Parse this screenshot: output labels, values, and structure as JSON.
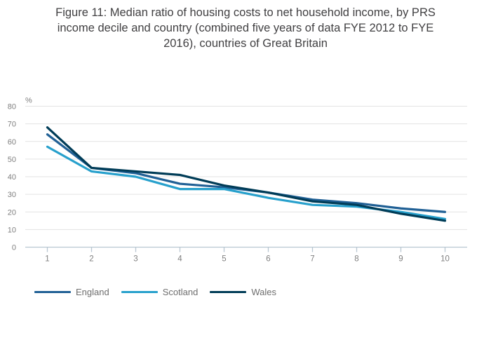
{
  "title_lines": {
    "l1": "Figure 11: Median ratio of housing costs to net household income, by PRS",
    "l2": "income decile and country (combined five years of data FYE 2012 to FYE",
    "l3": "2016), countries of Great Britain"
  },
  "chart_data": {
    "type": "line",
    "title": "Figure 11: Median ratio of housing costs to net household income, by PRS income decile and country (combined five years of data FYE 2012 to FYE 2016), countries of Great Britain",
    "x": [
      "1",
      "2",
      "3",
      "4",
      "5",
      "6",
      "7",
      "8",
      "9",
      "10"
    ],
    "xlabel": "",
    "ylabel": "%",
    "ylim": [
      0,
      80
    ],
    "yticks": [
      0,
      10,
      20,
      30,
      40,
      50,
      60,
      70,
      80
    ],
    "grid": "horizontal",
    "legend_position": "bottom-left",
    "series": [
      {
        "name": "England",
        "color": "#206095",
        "values": [
          64,
          45,
          42,
          36,
          34,
          31,
          27,
          25,
          22,
          20
        ]
      },
      {
        "name": "Scotland",
        "color": "#27A0CC",
        "values": [
          57,
          43,
          40,
          33,
          33,
          28,
          24,
          23,
          20,
          16
        ]
      },
      {
        "name": "Wales",
        "color": "#003C57",
        "values": [
          68,
          45,
          43,
          41,
          35,
          31,
          26,
          24,
          19,
          15
        ]
      }
    ]
  },
  "style": {
    "background": "#ffffff",
    "title_color": "#414042",
    "tick_label_color": "#7f7f7f",
    "grid_color": "#e3e3e3",
    "axis_color": "#b9c7d2",
    "legend_label_color": "#6e6e6e"
  }
}
